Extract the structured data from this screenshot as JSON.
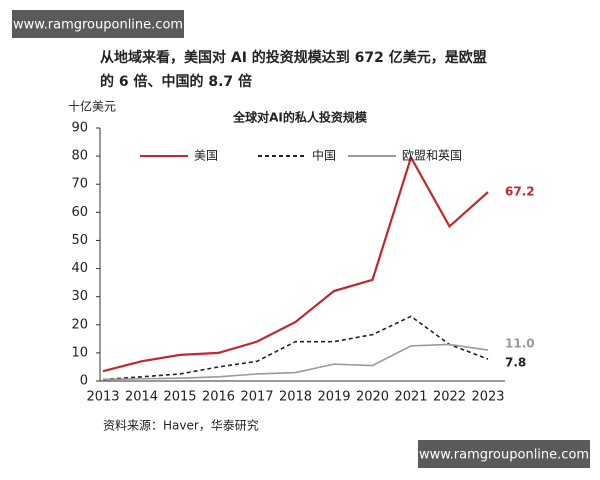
{
  "watermarks": [
    "www.ramgrouponline.com",
    "www.ramgrouponline.com"
  ],
  "heading": [
    "从地域来看，美国对 AI 的投资规模达到 672 亿美元，是欧盟",
    "的 6 倍、中国的 8.7 倍"
  ],
  "chart_data": {
    "type": "line",
    "title": "全球对AI的私人投资规模",
    "y_label": "十亿美元",
    "source": "资料来源：Haver，华泰研究",
    "categories": [
      "2013",
      "2014",
      "2015",
      "2016",
      "2017",
      "2018",
      "2019",
      "2020",
      "2021",
      "2022",
      "2023"
    ],
    "series": [
      {
        "name": "美国",
        "color": "#c0282d",
        "dash": "solid",
        "values": [
          3.5,
          7,
          9.3,
          10,
          14,
          21,
          32,
          36,
          79.5,
          55,
          67.2
        ],
        "value_labels": [
          null,
          null,
          null,
          null,
          null,
          null,
          null,
          null,
          null,
          null,
          "67.2"
        ]
      },
      {
        "name": "中国",
        "color": "#222222",
        "dash": "dashed",
        "values": [
          0.5,
          1.5,
          2.5,
          5,
          7,
          14,
          14,
          16.5,
          23,
          13,
          7.8
        ],
        "value_labels": [
          null,
          null,
          null,
          null,
          null,
          null,
          null,
          null,
          null,
          null,
          "7.8"
        ]
      },
      {
        "name": "欧盟和英国",
        "color": "#9a9a9a",
        "dash": "solid",
        "values": [
          0.5,
          0.8,
          1,
          1.5,
          2.5,
          3,
          6,
          5.5,
          12.5,
          13,
          11
        ],
        "value_labels": [
          null,
          null,
          null,
          null,
          null,
          null,
          null,
          null,
          null,
          null,
          "11.0"
        ]
      }
    ],
    "ylim": [
      0,
      90
    ],
    "yticks": [
      0,
      10,
      20,
      30,
      40,
      50,
      60,
      70,
      80,
      90
    ],
    "grid": false
  }
}
